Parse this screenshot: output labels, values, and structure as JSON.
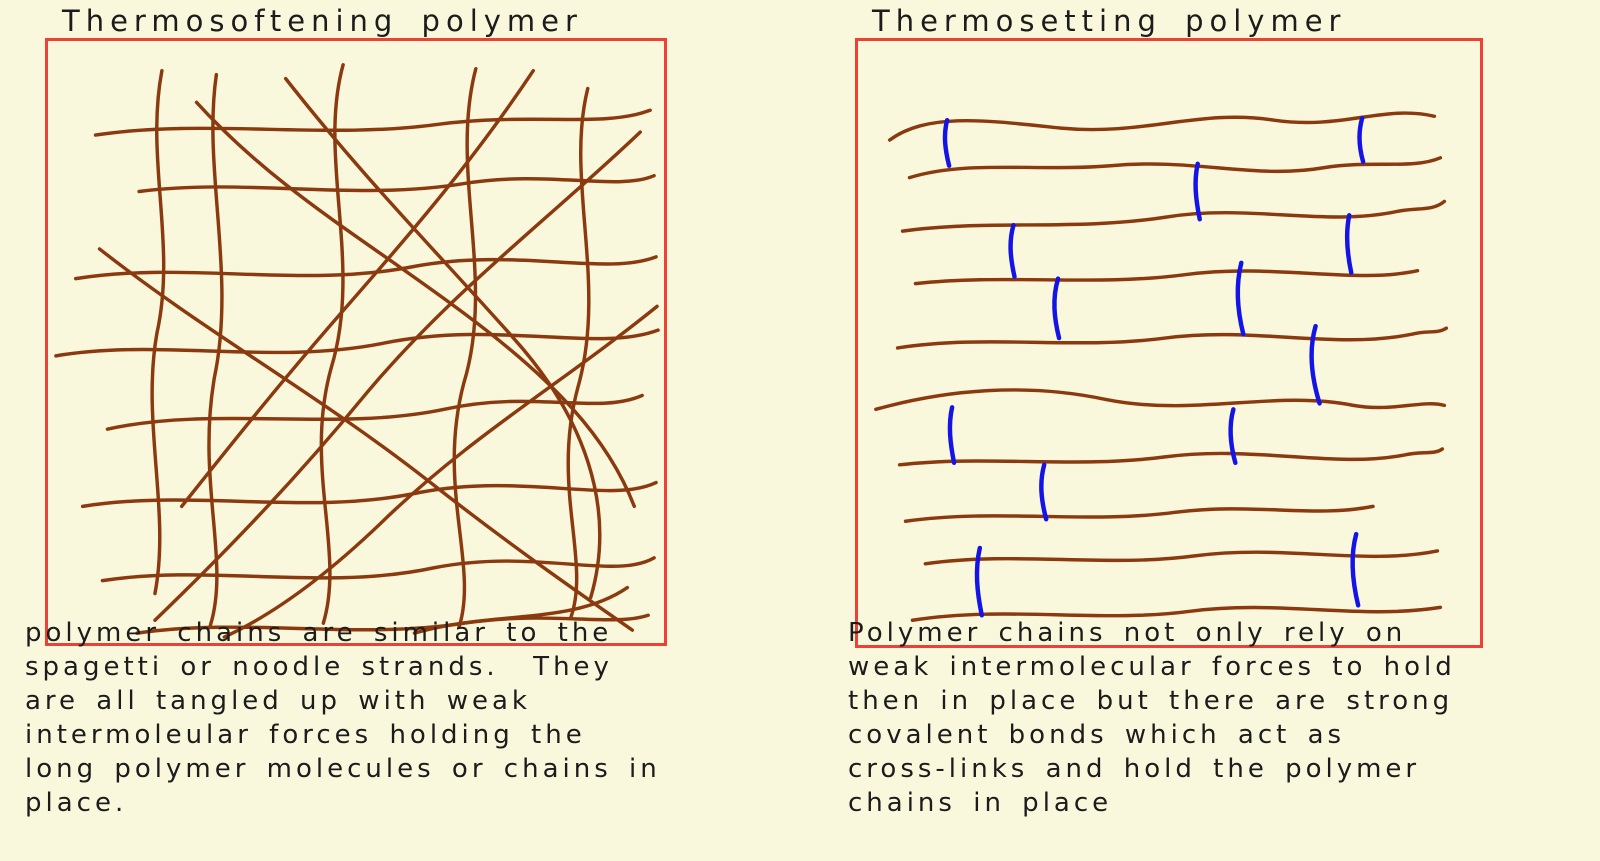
{
  "colors": {
    "background": "#FAF8DC",
    "box_border": "#EE4135",
    "chain": "#8B3A10",
    "crosslink": "#1414E6",
    "text": "#1C1C1C"
  },
  "panels": [
    {
      "id": "thermosoftening",
      "title": "Thermosoftening polymer",
      "caption_lines": [
        "polymer chains are similar to the",
        "spagetti or noodle strands.  They",
        "are all tangled up with weak",
        "intermoleular forces holding the",
        "long polymer molecules or chains in",
        "place."
      ],
      "chain_paths": [
        "M 115,30 C 98,120 130,205 110,295 C 94,385 124,475 108,558",
        "M 170,34 C 156,130 190,235 168,340 C 150,445 184,525 164,590",
        "M 298,24 C 272,118 318,225 286,330 C 258,430 300,515 278,588",
        "M 432,28 C 405,130 452,240 420,345 C 392,450 435,530 415,592",
        "M 545,48 C 522,140 565,245 535,350 C 508,450 548,525 528,582",
        "M 48,95 C 160,78 280,100 395,84 C 490,72 560,88 608,70",
        "M 92,152 C 200,138 310,162 420,144 C 505,130 575,152 612,136",
        "M 28,240 C 140,222 255,250 368,228 C 472,208 562,238 614,218",
        "M 8,318 C 115,300 228,328 340,305 C 455,282 555,315 616,292",
        "M 35,470 C 148,452 262,480 375,456 C 482,436 568,468 614,446",
        "M 55,545 C 165,528 278,556 390,532 C 492,512 572,545 612,522",
        "M 90,598 C 200,582 310,605 420,588 C 505,575 570,592 606,580",
        "M 240,38 C 320,140 390,210 470,300 C 540,378 575,470 548,562",
        "M 598,92 C 500,185 405,255 318,360 C 240,455 165,530 108,585",
        "M 52,210 C 160,295 270,355 385,445 C 470,512 540,560 590,595",
        "M 615,268 C 520,345 425,400 335,488 C 268,552 215,585 178,602",
        "M 150,62 C 230,150 320,200 420,275 C 510,342 565,400 592,470",
        "M 490,30 C 430,120 370,190 300,270 C 230,350 175,420 135,470",
        "M 60,392 C 170,368 290,395 400,372 C 490,352 555,378 600,358",
        "M 370,598 C 450,575 530,590 585,552"
      ],
      "crosslink_paths": []
    },
    {
      "id": "thermosetting",
      "title": "Thermosetting polymer",
      "caption_lines": [
        "Polymer chains not only rely on",
        "weak intermolecular forces to hold",
        "then in place but there are strong",
        "covalent bonds which act as",
        "cross-links and hold the polymer",
        "chains in place"
      ],
      "chain_paths": [
        "M 32,100 C 70,72 130,80 205,88 C 290,96 345,68 420,80 C 490,90 530,64 582,76",
        "M 52,138 C 110,120 180,132 255,126 C 340,118 400,140 470,128 C 520,120 560,130 588,118",
        "M 45,192 C 130,180 220,192 310,178 C 395,164 470,188 545,172 C 565,168 580,172 592,162",
        "M 58,245 C 150,235 240,248 330,236 C 420,224 500,246 565,232",
        "M 40,310 C 130,296 220,312 310,300 C 400,288 480,312 560,296 C 575,292 585,296 594,290",
        "M 18,372 C 90,352 170,345 250,362 C 340,380 420,352 500,368 C 540,375 570,362 592,368",
        "M 42,428 C 130,418 220,432 310,420 C 400,408 480,432 552,418 C 570,414 582,418 590,412",
        "M 48,485 C 140,472 230,488 320,476 C 400,466 460,482 520,470",
        "M 68,528 C 160,515 250,532 340,520 C 430,508 510,530 585,515",
        "M 55,585 C 150,570 245,588 335,576 C 425,564 505,585 588,572"
      ],
      "crosslink_paths": [
        "M 90,80 C 86,95 88,110 92,126",
        "M 509,78 C 505,92 506,108 510,122",
        "M 343,124 C 339,142 341,160 345,180",
        "M 496,176 C 492,195 494,215 498,234",
        "M 157,186 C 152,203 154,220 158,238",
        "M 202,240 C 196,260 198,280 203,300",
        "M 387,224 C 381,248 383,272 389,296",
        "M 462,288 C 455,312 458,340 466,366",
        "M 95,370 C 91,388 93,406 97,426",
        "M 379,372 C 374,390 376,408 381,426",
        "M 188,428 C 183,446 185,464 190,483",
        "M 123,512 C 118,534 120,556 125,580",
        "M 503,498 C 497,520 499,545 505,570"
      ]
    }
  ]
}
